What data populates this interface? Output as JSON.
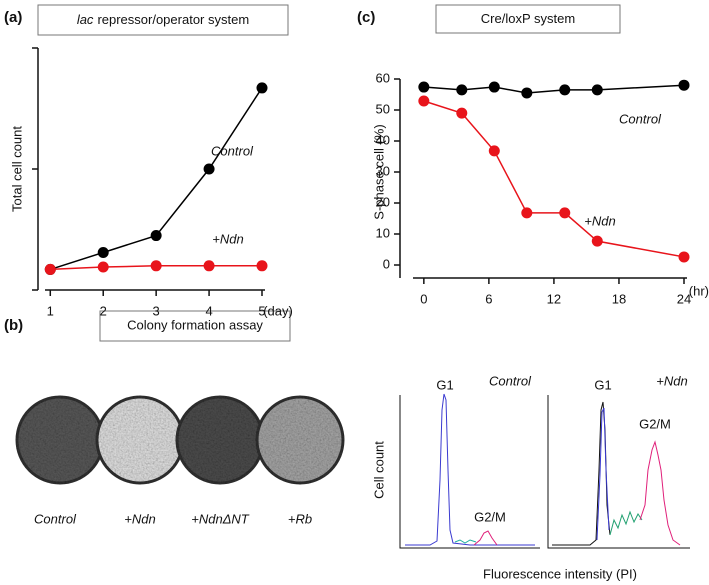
{
  "panel_labels": [
    "(a)",
    "(b)",
    "(c)"
  ],
  "chart_data": [
    {
      "type": "line",
      "title": [
        "lac",
        "repressor/operator system"
      ],
      "y_label": "Total cell count",
      "x_unit": "(day)",
      "x": [
        1,
        2,
        3,
        4,
        5
      ],
      "xlim": [
        0.9,
        5
      ],
      "xticks": [
        1,
        2,
        3,
        4,
        5
      ],
      "ylim": [
        0,
        2
      ],
      "yticks": [
        0,
        1,
        2
      ],
      "series": [
        {
          "name": "Control",
          "color": "#000000",
          "values": [
            0.17,
            0.31,
            0.45,
            1.0,
            1.67
          ]
        },
        {
          "name": "+Ndn",
          "color": "#e8141b",
          "values": [
            0.17,
            0.19,
            0.2,
            0.2,
            0.2
          ]
        }
      ]
    },
    {
      "type": "line",
      "title": [
        "Cre/loxP system"
      ],
      "y_label": "S-phase cell (%)",
      "x_unit": "(hr)",
      "x": [
        0,
        3.5,
        6.5,
        9.5,
        13,
        16,
        24
      ],
      "xlim": [
        -1,
        24
      ],
      "xticks": [
        0,
        6,
        12,
        18,
        24
      ],
      "ylim": [
        0,
        60
      ],
      "yticks": [
        0,
        10,
        20,
        30,
        40,
        50,
        60
      ],
      "series": [
        {
          "name": "Control",
          "color": "#000000",
          "values": [
            57.4,
            56.5,
            57.4,
            55.5,
            56.5,
            56.5,
            58
          ]
        },
        {
          "name": "+Ndn",
          "color": "#e8141b",
          "values": [
            52.9,
            49,
            36.8,
            16.8,
            16.8,
            7.7,
            2.6
          ]
        }
      ]
    }
  ],
  "colony": {
    "title": "Colony formation assay",
    "labels": [
      "Control",
      "+Ndn",
      "+NdnΔNT",
      "+Rb"
    ]
  },
  "histograms": {
    "y_label": "Cell count",
    "x_label": "Fluorescence intensity (PI)",
    "panels": [
      {
        "condition": "Control",
        "peaks": [
          "G1",
          "G2/M"
        ]
      },
      {
        "condition": "+Ndn",
        "peaks": [
          "G1",
          "G2/M"
        ]
      }
    ]
  }
}
